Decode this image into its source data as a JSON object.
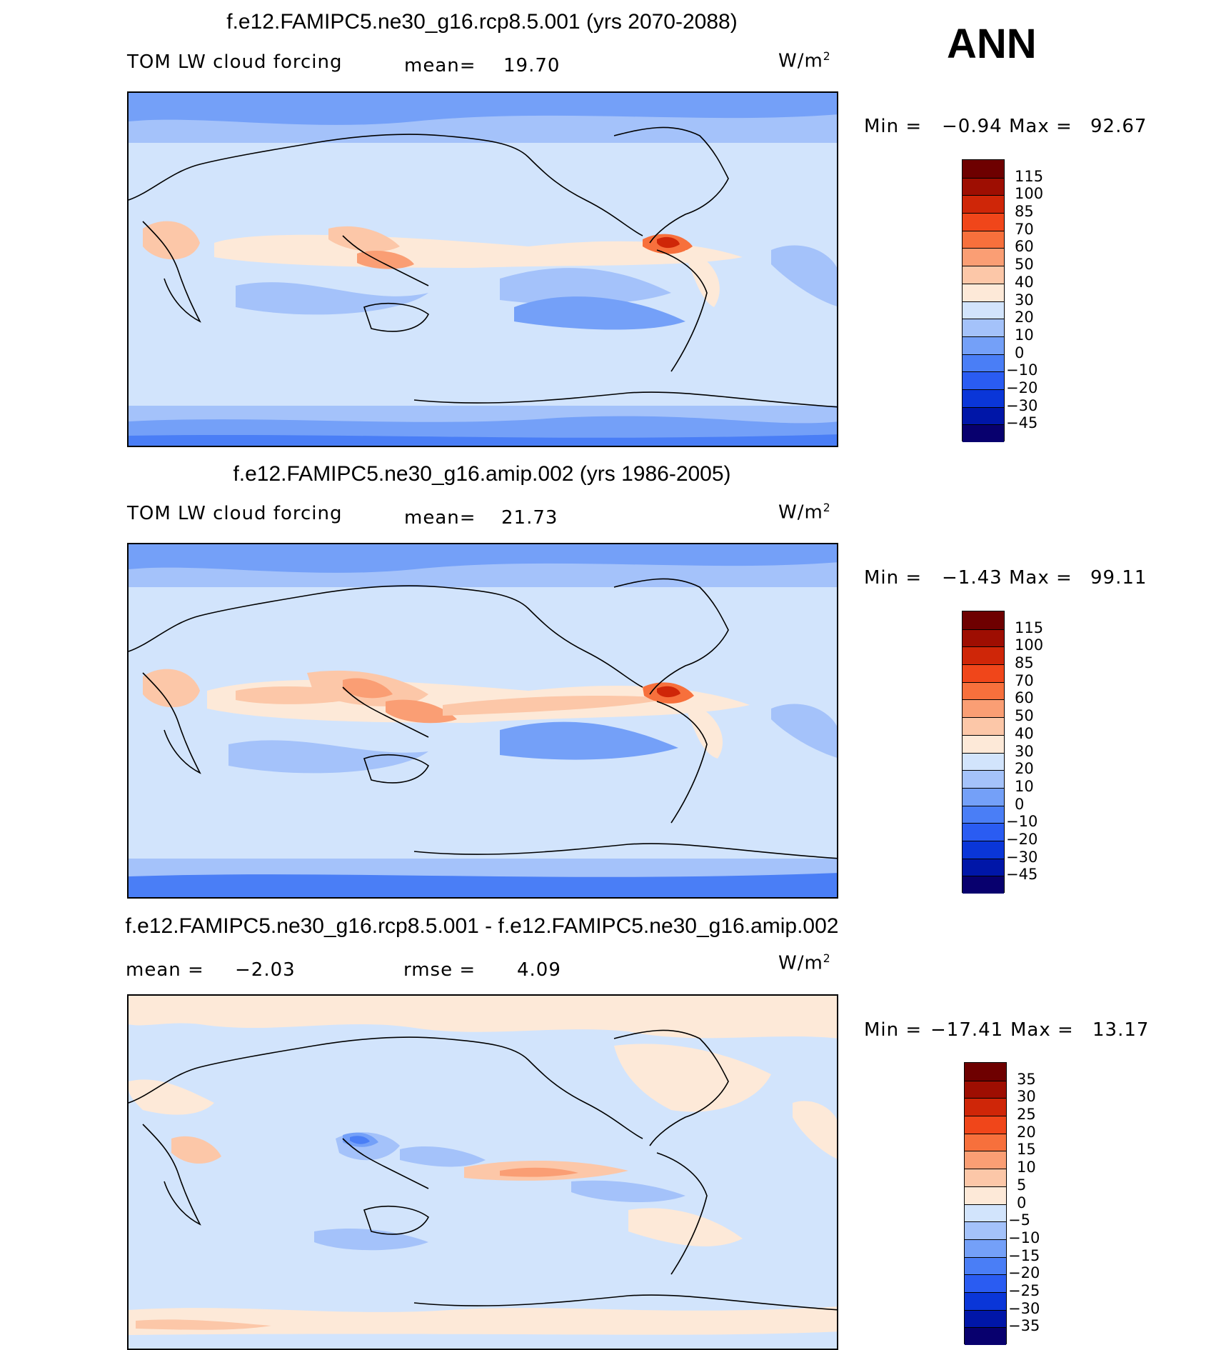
{
  "season": "ANN",
  "units_base": "W/m",
  "units_exp": "2",
  "colors": {
    "main_scale": [
      "#08006e",
      "#0016a8",
      "#0a36d8",
      "#2a5cf2",
      "#4a7ef6",
      "#74a0f8",
      "#a4c2fa",
      "#d2e4fc",
      "#fde9d8",
      "#fcc7a8",
      "#fa9e74",
      "#f7703c",
      "#f0461a",
      "#cf2608",
      "#9e0e02",
      "#6e0000"
    ],
    "diff_scale": [
      "#08006e",
      "#0016a8",
      "#0a36d8",
      "#2a5cf2",
      "#4a7ef6",
      "#74a0f8",
      "#a4c2fa",
      "#d2e4fc",
      "#fde9d8",
      "#fcc7a8",
      "#fa9e74",
      "#f7703c",
      "#f0461a",
      "#cf2608",
      "#9e0e02",
      "#6e0000"
    ]
  },
  "panels": [
    {
      "title": "f.e12.FAMIPC5.ne30_g16.rcp8.5.001 (yrs 2070-2088)",
      "variable": "TOM LW cloud forcing",
      "stat_label": "mean=",
      "stat_value": "19.70",
      "min_label": "Min =",
      "min_value": "−0.94",
      "max_label": "Max =",
      "max_value": "92.67",
      "levels": [
        "115",
        "100",
        "85",
        "70",
        "60",
        "50",
        "40",
        "30",
        "20",
        "10",
        "0",
        "−10",
        "−20",
        "−30",
        "−45"
      ]
    },
    {
      "title": "f.e12.FAMIPC5.ne30_g16.amip.002 (yrs 1986-2005)",
      "variable": "TOM LW cloud forcing",
      "stat_label": "mean=",
      "stat_value": "21.73",
      "min_label": "Min =",
      "min_value": "−1.43",
      "max_label": "Max =",
      "max_value": "99.11",
      "levels": [
        "115",
        "100",
        "85",
        "70",
        "60",
        "50",
        "40",
        "30",
        "20",
        "10",
        "0",
        "−10",
        "−20",
        "−30",
        "−45"
      ]
    },
    {
      "title": "f.e12.FAMIPC5.ne30_g16.rcp8.5.001 - f.e12.FAMIPC5.ne30_g16.amip.002",
      "stat_label": "mean =",
      "stat_value": "−2.03",
      "rmse_label": "rmse =",
      "rmse_value": "4.09",
      "min_label": "Min =",
      "min_value": "−17.41",
      "max_label": "Max =",
      "max_value": "13.17",
      "levels": [
        "35",
        "30",
        "25",
        "20",
        "15",
        "10",
        "5",
        "0",
        "−5",
        "−10",
        "−15",
        "−20",
        "−25",
        "−30",
        "−35"
      ]
    }
  ]
}
